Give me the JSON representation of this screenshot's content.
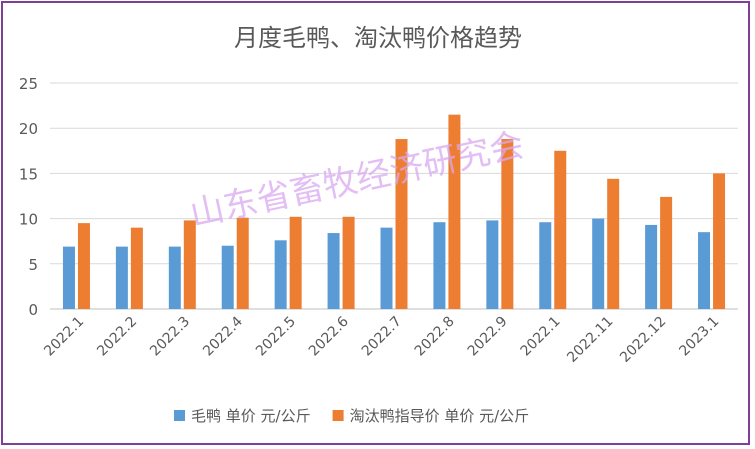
{
  "chart_data": {
    "type": "bar",
    "title": "月度毛鸭、淘汰鸭价格趋势",
    "watermark": "山东省畜牧经济研究会",
    "categories": [
      "2022.1",
      "2022.2",
      "2022.3",
      "2022.4",
      "2022.5",
      "2022.6",
      "2022.7",
      "2022.8",
      "2022.9",
      "2022.1",
      "2022.11",
      "2022.12",
      "2023.1"
    ],
    "series": [
      {
        "name": "毛鸭 单价 元/公斤",
        "color": "#5b9bd5",
        "values": [
          6.9,
          6.9,
          6.9,
          7.0,
          7.6,
          8.4,
          9.0,
          9.6,
          9.8,
          9.6,
          10.0,
          9.3,
          8.5
        ]
      },
      {
        "name": "淘汰鸭指导价 单价 元/公斤",
        "color": "#ed7d31",
        "values": [
          9.5,
          9.0,
          9.8,
          10.1,
          10.2,
          10.2,
          18.8,
          21.5,
          18.8,
          17.5,
          14.4,
          12.4,
          15.0
        ]
      }
    ],
    "ylim": [
      0,
      25
    ],
    "yticks": [
      "0",
      "5",
      "10",
      "15",
      "20",
      "25"
    ],
    "grid": true,
    "legend_position": "bottom"
  }
}
